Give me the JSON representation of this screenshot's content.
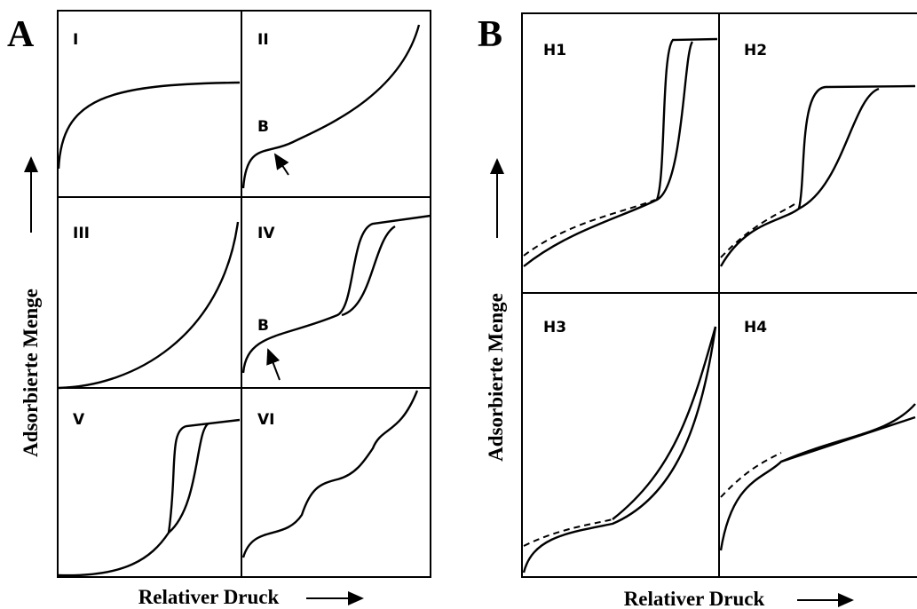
{
  "panels": [
    {
      "label": "A",
      "y_label": "Adsorbierte Menge",
      "x_label": "Relativer Druck",
      "cells": [
        {
          "label": "I"
        },
        {
          "label": "II",
          "point": "B"
        },
        {
          "label": "III"
        },
        {
          "label": "IV",
          "point": "B"
        },
        {
          "label": "V"
        },
        {
          "label": "VI"
        }
      ]
    },
    {
      "label": "B",
      "y_label": "Adsorbierte Menge",
      "x_label": "Relativer Druck",
      "cells": [
        {
          "label": "H1"
        },
        {
          "label": "H2"
        },
        {
          "label": "H3"
        },
        {
          "label": "H4"
        }
      ]
    }
  ]
}
